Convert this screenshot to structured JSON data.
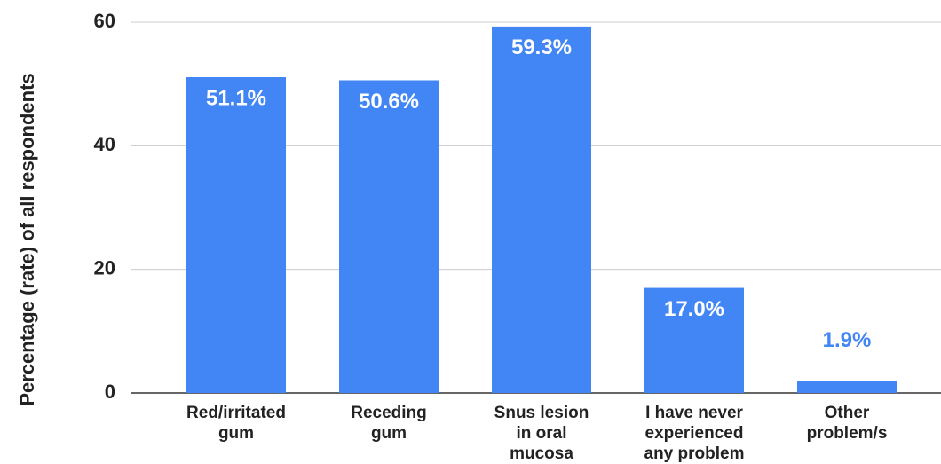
{
  "chart_data": {
    "type": "bar",
    "y_label": "Percentage (rate) of all respondents",
    "categories": [
      "Red/irritated\ngum",
      "Receding\ngum",
      "Snus lesion\nin oral\nmucosa",
      "I have never\nexperienced\nany problem",
      "Other\nproblem/s"
    ],
    "values": [
      51.1,
      50.6,
      59.3,
      17.0,
      1.9
    ],
    "value_labels": [
      "51.1%",
      "50.6%",
      "59.3%",
      "17.0%",
      "1.9%"
    ],
    "color": "#4285f4",
    "ylim": [
      0,
      60
    ],
    "yticks": [
      0,
      20,
      40,
      60
    ],
    "grid": true
  }
}
